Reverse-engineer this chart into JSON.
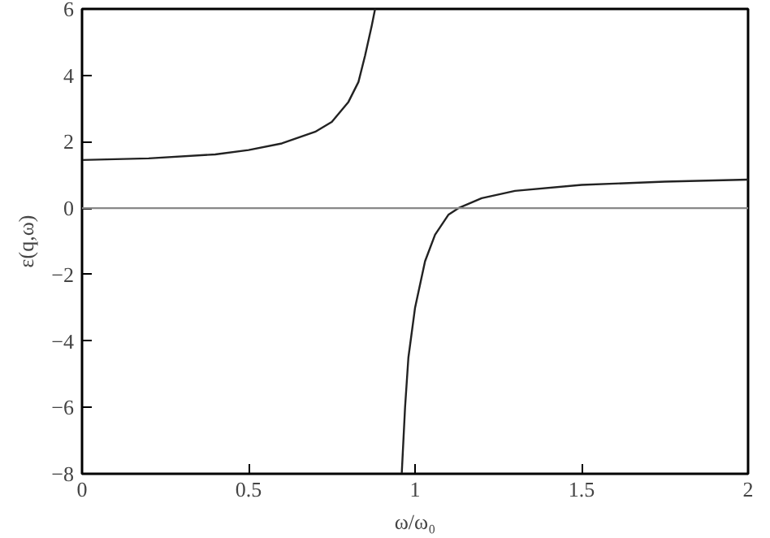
{
  "chart_data": {
    "type": "line",
    "xlabel": "ω/ω₀",
    "ylabel": "ε(q,ω)",
    "xlim": [
      0,
      2
    ],
    "ylim": [
      -8,
      6
    ],
    "xticks": [
      0,
      0.5,
      1,
      1.5,
      2
    ],
    "yticks": [
      -8,
      -6,
      -4,
      -2,
      0,
      2,
      4,
      6
    ],
    "grid": false,
    "marker": "none",
    "line_style": "solid",
    "ref_lines": [
      {
        "axis": "y",
        "value": 0,
        "color": "#888888"
      }
    ],
    "series": [
      {
        "color": "#222222",
        "x": [
          0,
          0.2,
          0.4,
          0.5,
          0.6,
          0.7,
          0.75,
          0.8,
          0.83,
          0.85,
          0.87,
          0.88
        ],
        "values": [
          1.45,
          1.5,
          1.62,
          1.75,
          1.95,
          2.3,
          2.6,
          3.2,
          3.8,
          4.6,
          5.5,
          6
        ]
      },
      {
        "color": "#222222",
        "x": [
          0.96,
          0.97,
          0.98,
          1.0,
          1.03,
          1.06,
          1.1,
          1.13,
          1.2,
          1.3,
          1.5,
          1.75,
          2
        ],
        "values": [
          -8,
          -6,
          -4.5,
          -3,
          -1.6,
          -0.8,
          -0.2,
          0,
          0.3,
          0.52,
          0.7,
          0.8,
          0.86
        ]
      }
    ]
  }
}
